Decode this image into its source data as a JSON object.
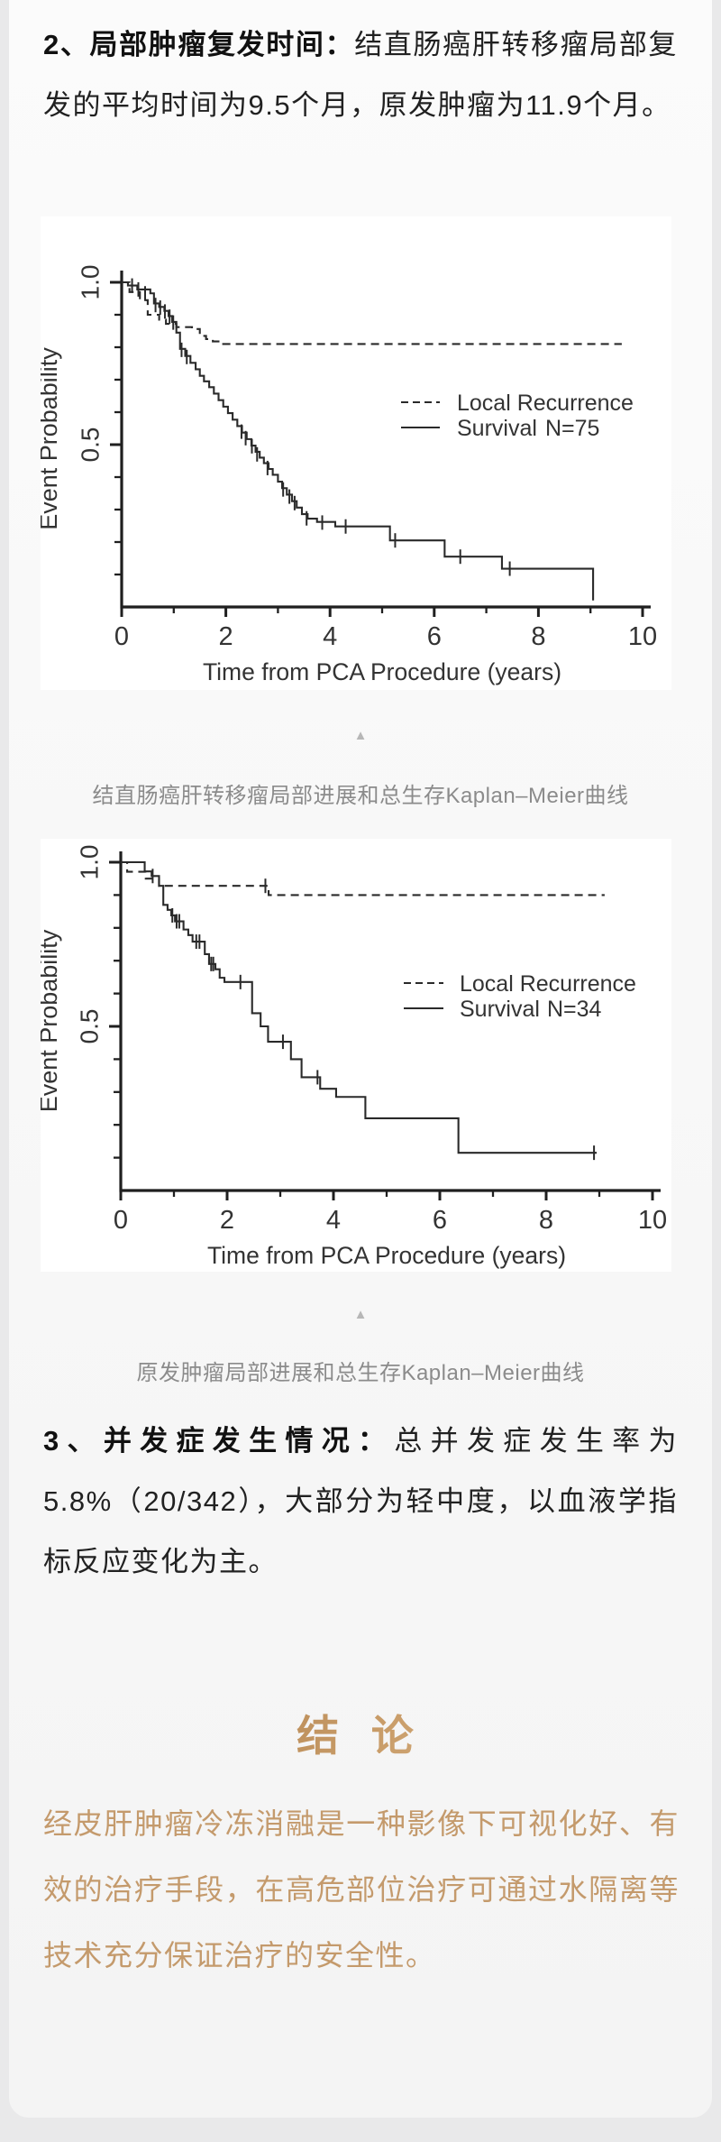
{
  "page": {
    "bg_color": "#e9e9ea",
    "card_bg": "#f8f8f8",
    "accent_gold": "#c49a6c"
  },
  "paragraph2": {
    "bold": "2、局部肿瘤复发时间：",
    "text": "结直肠癌肝转移瘤局部复发的平均时间为9.5个月，原发肿瘤为11.9个月。"
  },
  "paragraph3": {
    "bold": "3、并发症发生情况：",
    "text": "总并发症发生率为5.8%（20/342），大部分为轻中度，以血液学指标反应变化为主。"
  },
  "figure1": {
    "caption": "结直肠癌肝转移瘤局部进展和总生存Kaplan–Meier曲线",
    "arrow_icon": "▲"
  },
  "figure2": {
    "caption": "原发肿瘤局部进展和总生存Kaplan–Meier曲线",
    "arrow_icon": "▲"
  },
  "conclusion": {
    "title": "结 论",
    "text": "经皮肝肿瘤冷冻消融是一种影像下可视化好、有效的治疗手段，在高危部位治疗可通过水隔离等技术充分保证治疗的安全性。"
  },
  "chart_data": [
    {
      "type": "line",
      "subtype": "kaplan-meier-step",
      "title": "结直肠癌肝转移瘤局部进展和总生存Kaplan–Meier曲线",
      "xlabel": "Time from PCA Procedure (years)",
      "ylabel": "Event Probability",
      "xlim": [
        0,
        10
      ],
      "ylim": [
        0,
        1.0
      ],
      "xticks": [
        0,
        2,
        4,
        6,
        8,
        10
      ],
      "ytick_labels": [
        {
          "label": "1.0",
          "value": 1.0
        },
        {
          "label": "0.5",
          "value": 0.5
        }
      ],
      "ytick_minor_step": 0.1,
      "grid": false,
      "legend_position": "center-right",
      "legend": [
        {
          "label": "Local Recurrence",
          "style": "dashed"
        },
        {
          "label": "Survival",
          "style": "solid",
          "n_label": "N=75"
        }
      ],
      "series": [
        {
          "name": "Local Recurrence",
          "style": "dashed",
          "steps": [
            [
              0,
              1.0
            ],
            [
              0.15,
              0.97
            ],
            [
              0.35,
              0.945
            ],
            [
              0.5,
              0.9
            ],
            [
              0.72,
              0.885
            ],
            [
              0.85,
              0.872
            ],
            [
              1.05,
              0.862
            ],
            [
              1.35,
              0.856
            ],
            [
              1.5,
              0.835
            ],
            [
              1.62,
              0.825
            ],
            [
              1.75,
              0.818
            ],
            [
              1.92,
              0.81
            ],
            [
              9.6,
              0.81
            ]
          ],
          "censors": []
        },
        {
          "name": "Survival",
          "style": "solid",
          "steps": [
            [
              0,
              1.0
            ],
            [
              0.12,
              0.99
            ],
            [
              0.3,
              0.978
            ],
            [
              0.55,
              0.966
            ],
            [
              0.62,
              0.935
            ],
            [
              0.72,
              0.924
            ],
            [
              0.82,
              0.912
            ],
            [
              0.9,
              0.896
            ],
            [
              0.97,
              0.878
            ],
            [
              1.05,
              0.845
            ],
            [
              1.12,
              0.795
            ],
            [
              1.22,
              0.773
            ],
            [
              1.32,
              0.752
            ],
            [
              1.42,
              0.732
            ],
            [
              1.5,
              0.712
            ],
            [
              1.58,
              0.695
            ],
            [
              1.68,
              0.677
            ],
            [
              1.77,
              0.657
            ],
            [
              1.86,
              0.637
            ],
            [
              1.95,
              0.617
            ],
            [
              2.04,
              0.597
            ],
            [
              2.13,
              0.577
            ],
            [
              2.22,
              0.557
            ],
            [
              2.31,
              0.537
            ],
            [
              2.4,
              0.517
            ],
            [
              2.49,
              0.497
            ],
            [
              2.57,
              0.478
            ],
            [
              2.65,
              0.46
            ],
            [
              2.73,
              0.443
            ],
            [
              2.82,
              0.425
            ],
            [
              2.9,
              0.407
            ],
            [
              3.0,
              0.386
            ],
            [
              3.08,
              0.366
            ],
            [
              3.17,
              0.346
            ],
            [
              3.27,
              0.326
            ],
            [
              3.36,
              0.306
            ],
            [
              3.46,
              0.286
            ],
            [
              3.57,
              0.272
            ],
            [
              3.75,
              0.262
            ],
            [
              4.1,
              0.248
            ],
            [
              5.15,
              0.205
            ],
            [
              6.2,
              0.155
            ],
            [
              7.3,
              0.118
            ],
            [
              9.05,
              0.118
            ],
            [
              9.05,
              0.02
            ]
          ],
          "censors": [
            [
              0.2,
              0.99
            ],
            [
              0.32,
              0.978
            ],
            [
              0.45,
              0.966
            ],
            [
              0.65,
              0.93
            ],
            [
              0.74,
              0.922
            ],
            [
              0.83,
              0.91
            ],
            [
              0.92,
              0.894
            ],
            [
              0.99,
              0.876
            ],
            [
              1.15,
              0.792
            ],
            [
              1.25,
              0.77
            ],
            [
              2.3,
              0.54
            ],
            [
              2.38,
              0.52
            ],
            [
              2.5,
              0.495
            ],
            [
              2.6,
              0.47
            ],
            [
              2.8,
              0.428
            ],
            [
              3.1,
              0.362
            ],
            [
              3.22,
              0.34
            ],
            [
              3.32,
              0.32
            ],
            [
              3.55,
              0.273
            ],
            [
              3.85,
              0.26
            ],
            [
              4.3,
              0.248
            ],
            [
              5.25,
              0.205
            ],
            [
              6.5,
              0.155
            ],
            [
              7.45,
              0.118
            ]
          ]
        }
      ]
    },
    {
      "type": "line",
      "subtype": "kaplan-meier-step",
      "title": "原发肿瘤局部进展和总生存Kaplan–Meier曲线",
      "xlabel": "Time from PCA Procedure (years)",
      "ylabel": "Event Probability",
      "xlim": [
        0,
        10
      ],
      "ylim": [
        0,
        1.0
      ],
      "xticks": [
        0,
        2,
        4,
        6,
        8,
        10
      ],
      "ytick_labels": [
        {
          "label": "1.0",
          "value": 1.0
        },
        {
          "label": "0.5",
          "value": 0.5
        }
      ],
      "ytick_minor_step": 0.1,
      "grid": false,
      "legend_position": "center-right",
      "legend": [
        {
          "label": "Local Recurrence",
          "style": "dashed"
        },
        {
          "label": "Survival",
          "style": "solid",
          "n_label": "N=34"
        }
      ],
      "series": [
        {
          "name": "Local Recurrence",
          "style": "dashed",
          "steps": [
            [
              0,
              1.0
            ],
            [
              0.12,
              0.971
            ],
            [
              0.47,
              0.95
            ],
            [
              0.72,
              0.928
            ],
            [
              2.78,
              0.9
            ],
            [
              9.1,
              0.9
            ]
          ],
          "censors": [
            [
              2.72,
              0.928
            ]
          ]
        },
        {
          "name": "Survival",
          "style": "solid",
          "steps": [
            [
              0,
              1.0
            ],
            [
              0.45,
              0.972
            ],
            [
              0.58,
              0.958
            ],
            [
              0.72,
              0.928
            ],
            [
              0.8,
              0.87
            ],
            [
              0.88,
              0.855
            ],
            [
              0.95,
              0.838
            ],
            [
              1.02,
              0.82
            ],
            [
              1.18,
              0.795
            ],
            [
              1.27,
              0.778
            ],
            [
              1.35,
              0.758
            ],
            [
              1.58,
              0.72
            ],
            [
              1.66,
              0.69
            ],
            [
              1.78,
              0.674
            ],
            [
              1.86,
              0.648
            ],
            [
              1.95,
              0.635
            ],
            [
              2.47,
              0.54
            ],
            [
              2.63,
              0.5
            ],
            [
              2.77,
              0.453
            ],
            [
              3.2,
              0.4
            ],
            [
              3.4,
              0.345
            ],
            [
              3.75,
              0.31
            ],
            [
              4.05,
              0.285
            ],
            [
              4.6,
              0.22
            ],
            [
              6.35,
              0.115
            ],
            [
              8.95,
              0.115
            ]
          ],
          "censors": [
            [
              0.6,
              0.958
            ],
            [
              0.97,
              0.838
            ],
            [
              1.05,
              0.82
            ],
            [
              1.1,
              0.82
            ],
            [
              1.42,
              0.758
            ],
            [
              1.48,
              0.758
            ],
            [
              1.7,
              0.69
            ],
            [
              1.74,
              0.69
            ],
            [
              2.25,
              0.635
            ],
            [
              3.05,
              0.453
            ],
            [
              3.7,
              0.345
            ],
            [
              8.9,
              0.115
            ]
          ]
        }
      ]
    }
  ]
}
